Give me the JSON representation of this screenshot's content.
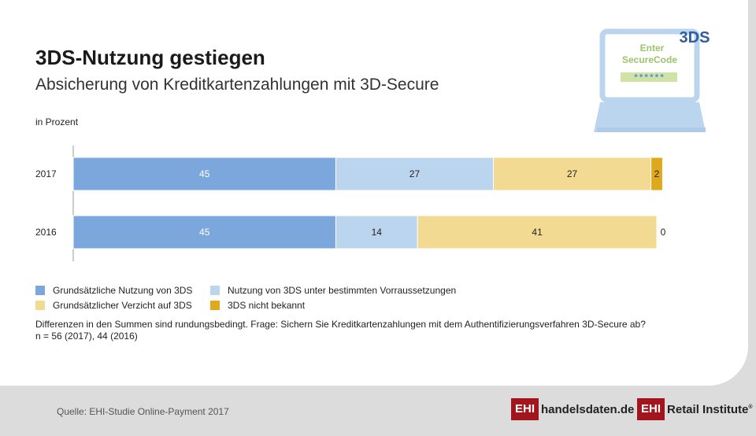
{
  "header": {
    "title": "3DS-Nutzung gestiegen",
    "subtitle": "Absicherung von Kreditkartenzahlungen mit 3D-Secure",
    "unit": "in Prozent"
  },
  "illustration": {
    "badge": "3DS",
    "screen_line1": "Enter",
    "screen_line2": "SecureCode",
    "password": "******"
  },
  "chart_data": {
    "type": "bar",
    "orientation": "horizontal-stacked",
    "categories": [
      "2017",
      "2016"
    ],
    "xlim": [
      0,
      100
    ],
    "series": [
      {
        "name": "Grundsätzliche Nutzung von 3DS",
        "color": "#7ba7dc",
        "values": [
          45,
          45
        ]
      },
      {
        "name": "Nutzung von 3DS unter bestimmten Vorraussetzungen",
        "color": "#bcd5ef",
        "values": [
          27,
          14
        ]
      },
      {
        "name": "Grundsätzlicher Verzicht auf 3DS",
        "color": "#f2da93",
        "values": [
          27,
          41
        ]
      },
      {
        "name": "3DS nicht bekannt",
        "color": "#e0a919",
        "values": [
          2,
          0
        ]
      }
    ],
    "value_labels": [
      [
        "45",
        "27",
        "27",
        "2"
      ],
      [
        "45",
        "14",
        "41",
        "0"
      ]
    ]
  },
  "notes": {
    "line1": "Differenzen in den Summen sind rundungsbedingt. Frage: Sichern Sie Kreditkartenzahlungen mit dem Authentifizierungsverfahren 3D-Secure ab?",
    "line2": "n = 56 (2017), 44 (2016)"
  },
  "footer": {
    "source": "Quelle: EHI-Studie Online-Payment 2017",
    "logo1_box": "EHI",
    "logo1_text": "handelsdaten.de",
    "logo2_box": "EHI",
    "logo2_text": "Retail Institute",
    "logo2_mark": "®"
  }
}
